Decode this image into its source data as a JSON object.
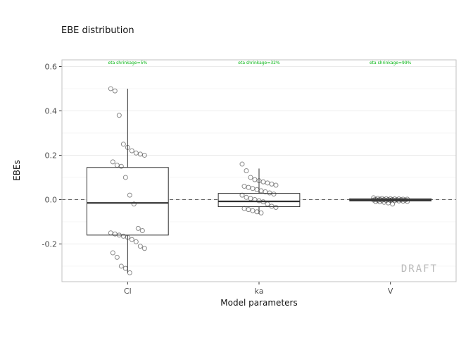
{
  "watermark": "DRAFT",
  "chart_data": {
    "type": "boxplot",
    "title": "EBE distribution",
    "xlabel": "Model parameters",
    "ylabel": "EBEs",
    "ylim": [
      -0.37,
      0.63
    ],
    "yticks": [
      -0.2,
      0.0,
      0.2,
      0.4,
      0.6
    ],
    "reference_line": 0.0,
    "grid": true,
    "categories": [
      "Cl",
      "ka",
      "V"
    ],
    "annotation_color": "#00b40f",
    "annotations": [
      {
        "category": "Cl",
        "label": "eta shrinkage=5%"
      },
      {
        "category": "ka",
        "label": "eta shrinkage=32%"
      },
      {
        "category": "V",
        "label": "eta shrinkage=99%"
      }
    ],
    "boxes": [
      {
        "category": "Cl",
        "whisker_low": -0.33,
        "q1": -0.16,
        "median": -0.015,
        "q3": 0.145,
        "whisker_high": 0.5,
        "points": [
          0.5,
          0.49,
          0.38,
          0.25,
          0.235,
          0.22,
          0.21,
          0.205,
          0.2,
          0.17,
          0.155,
          0.15,
          0.1,
          0.02,
          -0.02,
          -0.13,
          -0.14,
          -0.15,
          -0.155,
          -0.16,
          -0.165,
          -0.17,
          -0.18,
          -0.19,
          -0.21,
          -0.22,
          -0.24,
          -0.26,
          -0.3,
          -0.31,
          -0.33
        ]
      },
      {
        "category": "ka",
        "whisker_low": -0.065,
        "q1": -0.032,
        "median": -0.008,
        "q3": 0.028,
        "whisker_high": 0.14,
        "points": [
          0.16,
          0.13,
          0.1,
          0.09,
          0.085,
          0.08,
          0.075,
          0.07,
          0.065,
          0.06,
          0.055,
          0.05,
          0.045,
          0.04,
          0.035,
          0.03,
          0.025,
          0.02,
          0.01,
          0.005,
          0.0,
          -0.005,
          -0.01,
          -0.02,
          -0.03,
          -0.035,
          -0.04,
          -0.045,
          -0.05,
          -0.055,
          -0.06
        ]
      },
      {
        "category": "V",
        "whisker_low": -0.012,
        "q1": -0.006,
        "median": -0.002,
        "q3": 0.004,
        "whisker_high": 0.008,
        "points": [
          0.008,
          0.006,
          0.005,
          0.004,
          0.004,
          0.003,
          0.003,
          0.002,
          0.002,
          0.001,
          0.001,
          0.0,
          0.0,
          0.0,
          -0.001,
          -0.001,
          -0.002,
          -0.002,
          -0.003,
          -0.003,
          -0.004,
          -0.004,
          -0.005,
          -0.006,
          -0.007,
          -0.008,
          -0.009,
          -0.01,
          -0.012,
          -0.015,
          -0.02
        ]
      }
    ],
    "colors": {
      "box_stroke": "#2f2f2f",
      "point_stroke": "#3a3a3a",
      "grid_major": "#ebebeb",
      "grid_minor": "#f5f5f5",
      "panel_border": "#c2c2c2",
      "reference_dash": "#5f5f5f",
      "tick_label": "#4d4d4d"
    }
  }
}
